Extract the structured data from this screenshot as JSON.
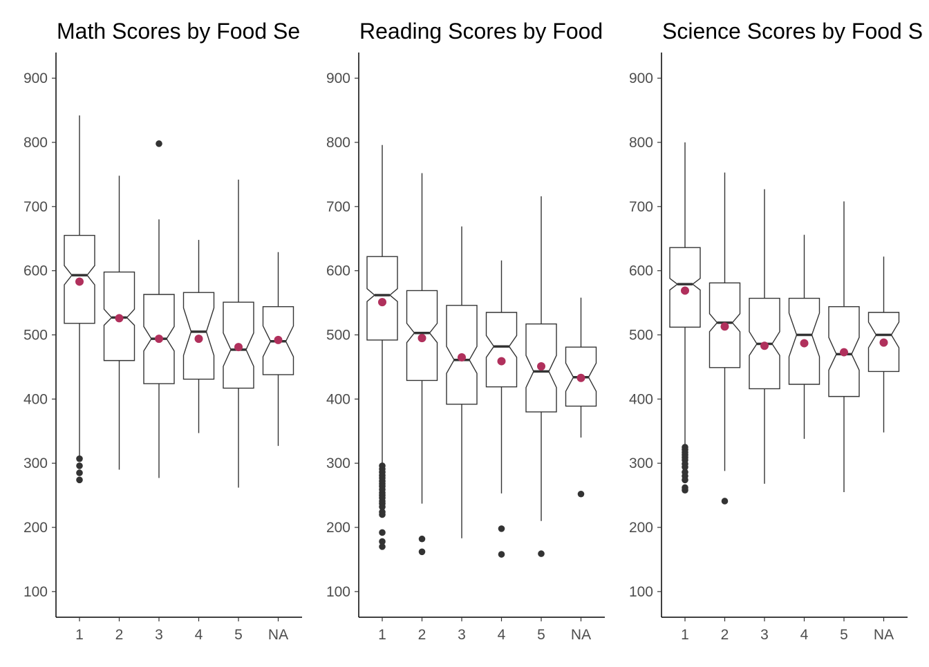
{
  "colors": {
    "box_line": "#333333",
    "mean_point": "#b0305c",
    "axis_line": "#000000",
    "tick_text": "#4d4d4d",
    "title_text": "#000000",
    "background": "#ffffff"
  },
  "chart_data": [
    {
      "type": "box",
      "title": "Math Scores by Food Se",
      "xlabel": "",
      "ylabel": "",
      "categories": [
        "1",
        "2",
        "3",
        "4",
        "5",
        "NA"
      ],
      "yticks": [
        100,
        200,
        300,
        400,
        500,
        600,
        700,
        800,
        900
      ],
      "ylim": [
        60,
        940
      ],
      "grid": false,
      "notched": true,
      "boxes": [
        {
          "category": "1",
          "whisker_low": 310,
          "q1": 518,
          "median": 593,
          "q3": 655,
          "whisker_high": 842,
          "notch_low": 578,
          "notch_high": 608,
          "mean": 583,
          "outliers": [
            307,
            296,
            285,
            274
          ]
        },
        {
          "category": "2",
          "whisker_low": 290,
          "q1": 460,
          "median": 527,
          "q3": 598,
          "whisker_high": 748,
          "notch_low": 515,
          "notch_high": 540,
          "mean": 526,
          "outliers": []
        },
        {
          "category": "3",
          "whisker_low": 277,
          "q1": 424,
          "median": 494,
          "q3": 563,
          "whisker_high": 680,
          "notch_low": 475,
          "notch_high": 513,
          "mean": 494,
          "outliers": [
            798
          ]
        },
        {
          "category": "4",
          "whisker_low": 347,
          "q1": 431,
          "median": 505,
          "q3": 566,
          "whisker_high": 648,
          "notch_low": 468,
          "notch_high": 542,
          "mean": 494,
          "outliers": []
        },
        {
          "category": "5",
          "whisker_low": 262,
          "q1": 417,
          "median": 477,
          "q3": 551,
          "whisker_high": 742,
          "notch_low": 451,
          "notch_high": 503,
          "mean": 481,
          "outliers": []
        },
        {
          "category": "NA",
          "whisker_low": 327,
          "q1": 438,
          "median": 490,
          "q3": 544,
          "whisker_high": 629,
          "notch_low": 466,
          "notch_high": 514,
          "mean": 492,
          "outliers": []
        }
      ]
    },
    {
      "type": "box",
      "title": "Reading Scores by Food",
      "xlabel": "",
      "ylabel": "",
      "categories": [
        "1",
        "2",
        "3",
        "4",
        "5",
        "NA"
      ],
      "yticks": [
        100,
        200,
        300,
        400,
        500,
        600,
        700,
        800,
        900
      ],
      "ylim": [
        60,
        940
      ],
      "grid": false,
      "notched": true,
      "boxes": [
        {
          "category": "1",
          "whisker_low": 300,
          "q1": 492,
          "median": 562,
          "q3": 622,
          "whisker_high": 796,
          "notch_low": 552,
          "notch_high": 572,
          "mean": 551,
          "outliers": [
            296,
            291,
            286,
            281,
            277,
            272,
            268,
            264,
            259,
            254,
            250,
            246,
            241,
            237,
            232,
            224,
            220,
            192,
            178,
            170
          ]
        },
        {
          "category": "2",
          "whisker_low": 237,
          "q1": 429,
          "median": 503,
          "q3": 569,
          "whisker_high": 752,
          "notch_low": 488,
          "notch_high": 518,
          "mean": 495,
          "outliers": [
            182,
            162
          ]
        },
        {
          "category": "3",
          "whisker_low": 183,
          "q1": 392,
          "median": 461,
          "q3": 546,
          "whisker_high": 669,
          "notch_low": 440,
          "notch_high": 482,
          "mean": 465,
          "outliers": []
        },
        {
          "category": "4",
          "whisker_low": 253,
          "q1": 419,
          "median": 482,
          "q3": 535,
          "whisker_high": 616,
          "notch_low": 465,
          "notch_high": 499,
          "mean": 459,
          "outliers": [
            198,
            158
          ]
        },
        {
          "category": "5",
          "whisker_low": 210,
          "q1": 380,
          "median": 443,
          "q3": 517,
          "whisker_high": 716,
          "notch_low": 418,
          "notch_high": 468,
          "mean": 451,
          "outliers": [
            159
          ]
        },
        {
          "category": "NA",
          "whisker_low": 340,
          "q1": 389,
          "median": 434,
          "q3": 481,
          "whisker_high": 558,
          "notch_low": 412,
          "notch_high": 456,
          "mean": 433,
          "outliers": [
            252
          ]
        }
      ]
    },
    {
      "type": "box",
      "title": "Science Scores by Food S",
      "xlabel": "",
      "ylabel": "",
      "categories": [
        "1",
        "2",
        "3",
        "4",
        "5",
        "NA"
      ],
      "yticks": [
        100,
        200,
        300,
        400,
        500,
        600,
        700,
        800,
        900
      ],
      "ylim": [
        60,
        940
      ],
      "grid": false,
      "notched": true,
      "boxes": [
        {
          "category": "1",
          "whisker_low": 330,
          "q1": 512,
          "median": 579,
          "q3": 636,
          "whisker_high": 800,
          "notch_low": 570,
          "notch_high": 588,
          "mean": 569,
          "outliers": [
            325,
            321,
            317,
            313,
            309,
            305,
            299,
            294,
            286,
            280,
            274,
            262,
            258
          ]
        },
        {
          "category": "2",
          "whisker_low": 288,
          "q1": 449,
          "median": 519,
          "q3": 581,
          "whisker_high": 753,
          "notch_low": 505,
          "notch_high": 533,
          "mean": 513,
          "outliers": [
            241
          ]
        },
        {
          "category": "3",
          "whisker_low": 268,
          "q1": 416,
          "median": 486,
          "q3": 557,
          "whisker_high": 727,
          "notch_low": 468,
          "notch_high": 505,
          "mean": 483,
          "outliers": []
        },
        {
          "category": "4",
          "whisker_low": 338,
          "q1": 423,
          "median": 500,
          "q3": 557,
          "whisker_high": 656,
          "notch_low": 466,
          "notch_high": 534,
          "mean": 487,
          "outliers": []
        },
        {
          "category": "5",
          "whisker_low": 255,
          "q1": 404,
          "median": 470,
          "q3": 544,
          "whisker_high": 708,
          "notch_low": 445,
          "notch_high": 496,
          "mean": 473,
          "outliers": []
        },
        {
          "category": "NA",
          "whisker_low": 348,
          "q1": 443,
          "median": 500,
          "q3": 535,
          "whisker_high": 622,
          "notch_low": 480,
          "notch_high": 520,
          "mean": 488,
          "outliers": []
        }
      ]
    }
  ]
}
